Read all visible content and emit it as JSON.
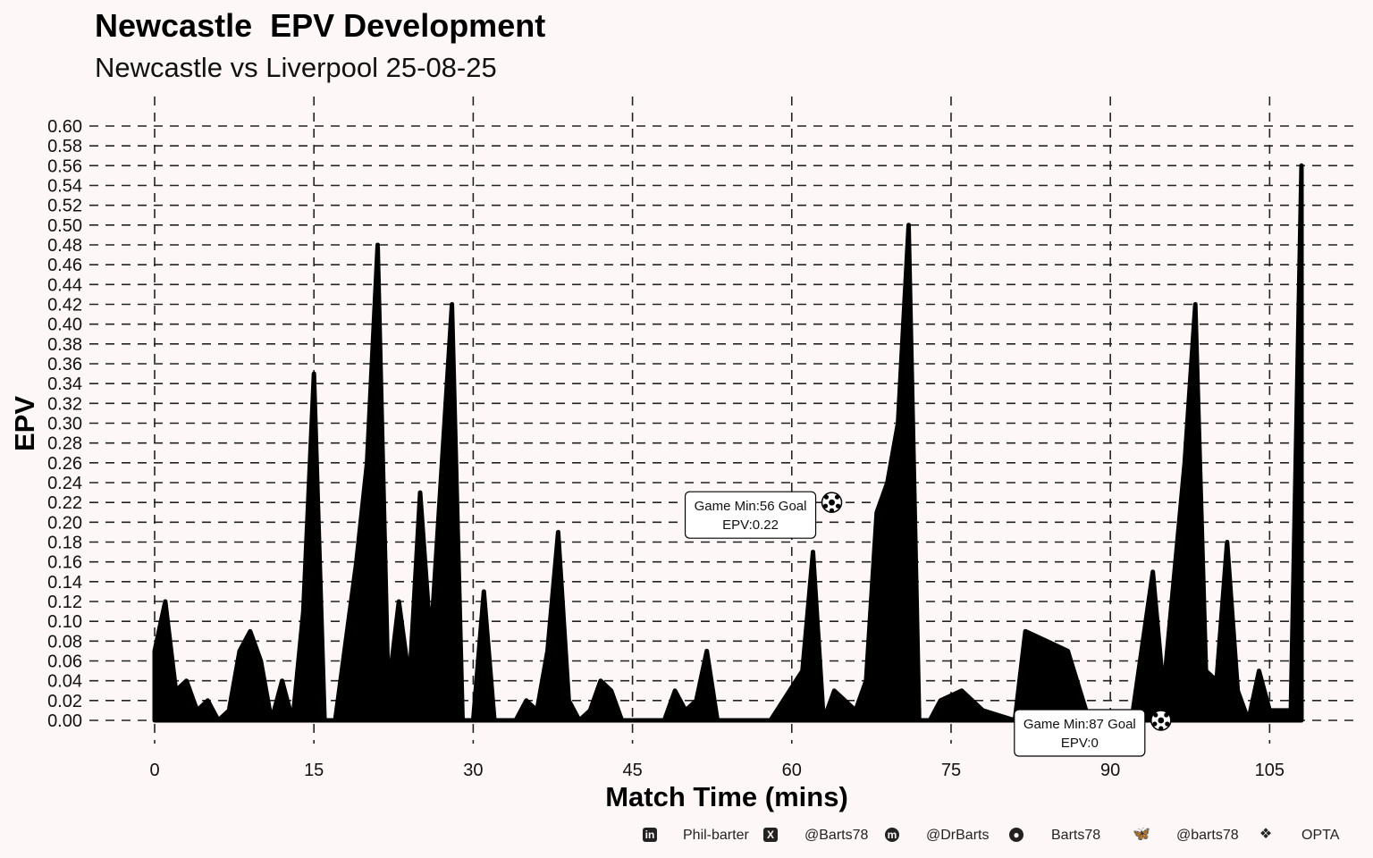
{
  "header": {
    "title": "Newcastle  EPV Development",
    "subtitle": "Newcastle vs Liverpool 25-08-25"
  },
  "footer": {
    "items": [
      {
        "icon": "linkedin-icon",
        "label": "Phil-barter"
      },
      {
        "icon": "x-icon",
        "label": "@Barts78"
      },
      {
        "icon": "mastodon-icon",
        "label": "@DrBarts"
      },
      {
        "icon": "github-icon",
        "label": "Barts78"
      },
      {
        "icon": "bluesky-icon",
        "label": "@barts78"
      },
      {
        "icon": "dropbox-icon",
        "label": "OPTA"
      }
    ]
  },
  "chart_data": {
    "type": "area",
    "xlabel": "Match Time (mins)",
    "ylabel": "EPV",
    "xlim": [
      0,
      108
    ],
    "ylim": [
      0,
      0.6
    ],
    "xticks": [
      0,
      15,
      30,
      45,
      60,
      75,
      90,
      105
    ],
    "yticks": [
      0.0,
      0.02,
      0.04,
      0.06,
      0.08,
      0.1,
      0.12,
      0.14,
      0.16,
      0.18,
      0.2,
      0.22,
      0.24,
      0.26,
      0.28,
      0.3,
      0.32,
      0.34,
      0.36,
      0.38,
      0.4,
      0.42,
      0.44,
      0.46,
      0.48,
      0.5,
      0.52,
      0.54,
      0.56,
      0.58,
      0.6
    ],
    "grid": true,
    "fill_color": "#000000",
    "series": [
      {
        "points": [
          [
            0,
            0
          ],
          [
            0,
            0.07
          ],
          [
            1,
            0.12
          ],
          [
            2,
            0.03
          ],
          [
            3,
            0.04
          ],
          [
            4,
            0.01
          ],
          [
            5,
            0.02
          ],
          [
            6,
            0
          ],
          [
            7,
            0.01
          ],
          [
            8,
            0.07
          ],
          [
            9,
            0.09
          ],
          [
            10,
            0.06
          ],
          [
            11,
            0
          ],
          [
            12,
            0.04
          ],
          [
            13,
            0
          ],
          [
            14,
            0.11
          ],
          [
            15,
            0.35
          ],
          [
            16,
            0
          ],
          [
            17,
            0
          ],
          [
            19,
            0.16
          ],
          [
            20,
            0.26
          ],
          [
            21,
            0.48
          ],
          [
            22,
            0.03
          ],
          [
            23,
            0.12
          ],
          [
            24,
            0.04
          ],
          [
            25,
            0.23
          ],
          [
            26,
            0.08
          ],
          [
            28,
            0.42
          ],
          [
            29,
            0
          ],
          [
            30,
            0
          ],
          [
            31,
            0.13
          ],
          [
            32,
            0
          ],
          [
            34,
            0
          ],
          [
            35,
            0.02
          ],
          [
            36,
            0.01
          ],
          [
            37,
            0.07
          ],
          [
            38,
            0.19
          ],
          [
            39,
            0.02
          ],
          [
            40,
            0
          ],
          [
            41,
            0.01
          ],
          [
            42,
            0.04
          ],
          [
            43,
            0.03
          ],
          [
            44,
            0
          ],
          [
            48,
            0
          ],
          [
            49,
            0.03
          ],
          [
            50,
            0.01
          ],
          [
            51,
            0.02
          ],
          [
            52,
            0.07
          ],
          [
            53,
            0
          ],
          [
            58,
            0
          ],
          [
            61,
            0.05
          ],
          [
            62,
            0.17
          ],
          [
            63,
            0
          ],
          [
            64,
            0.03
          ],
          [
            65,
            0.02
          ],
          [
            66,
            0.01
          ],
          [
            67,
            0.04
          ],
          [
            68,
            0.21
          ],
          [
            69,
            0.24
          ],
          [
            70,
            0.3
          ],
          [
            71,
            0.5
          ],
          [
            72,
            0
          ],
          [
            73,
            0
          ],
          [
            74,
            0.02
          ],
          [
            76,
            0.03
          ],
          [
            78,
            0.01
          ],
          [
            81,
            0
          ],
          [
            82,
            0.09
          ],
          [
            84,
            0.08
          ],
          [
            86,
            0.07
          ],
          [
            88,
            0
          ],
          [
            92,
            0
          ],
          [
            94,
            0.15
          ],
          [
            95,
            0.03
          ],
          [
            97,
            0.26
          ],
          [
            98,
            0.42
          ],
          [
            99,
            0.05
          ],
          [
            100,
            0.04
          ],
          [
            101,
            0.18
          ],
          [
            102,
            0.03
          ],
          [
            103,
            0
          ],
          [
            104,
            0.05
          ],
          [
            105,
            0.01
          ],
          [
            107,
            0.01
          ],
          [
            108,
            0.56
          ],
          [
            108,
            0
          ]
        ]
      }
    ],
    "annotations": [
      {
        "text_line1": "Game Min:56 Goal",
        "text_line2": "EPV:0.22",
        "goal_x": 62,
        "goal_y": 0.22
      },
      {
        "text_line1": "Game Min:87 Goal",
        "text_line2": "EPV:0",
        "goal_x": 93,
        "goal_y": 0
      }
    ]
  }
}
